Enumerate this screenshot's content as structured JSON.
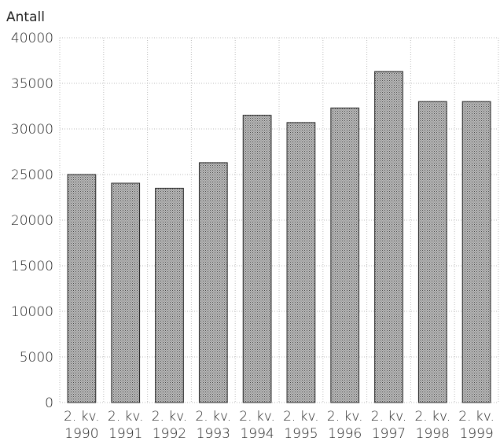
{
  "chart_data": {
    "type": "bar",
    "title": "",
    "ylabel": "Antall",
    "xlabel": "",
    "ylim": [
      0,
      40000
    ],
    "yticks": [
      0,
      5000,
      10000,
      15000,
      20000,
      25000,
      30000,
      35000,
      40000
    ],
    "grid": true,
    "categories": [
      [
        "2. kv.",
        "1990"
      ],
      [
        "2. kv.",
        "1991"
      ],
      [
        "2. kv.",
        "1992"
      ],
      [
        "2. kv.",
        "1993"
      ],
      [
        "2. kv.",
        "1994"
      ],
      [
        "2. kv.",
        "1995"
      ],
      [
        "2. kv.",
        "1996"
      ],
      [
        "2. kv.",
        "1997"
      ],
      [
        "2. kv.",
        "1998"
      ],
      [
        "2. kv.",
        "1999"
      ]
    ],
    "values": [
      25000,
      24050,
      23500,
      26300,
      31500,
      30700,
      32300,
      36300,
      33000,
      33000
    ],
    "bar_color": "#9a9a9a"
  }
}
